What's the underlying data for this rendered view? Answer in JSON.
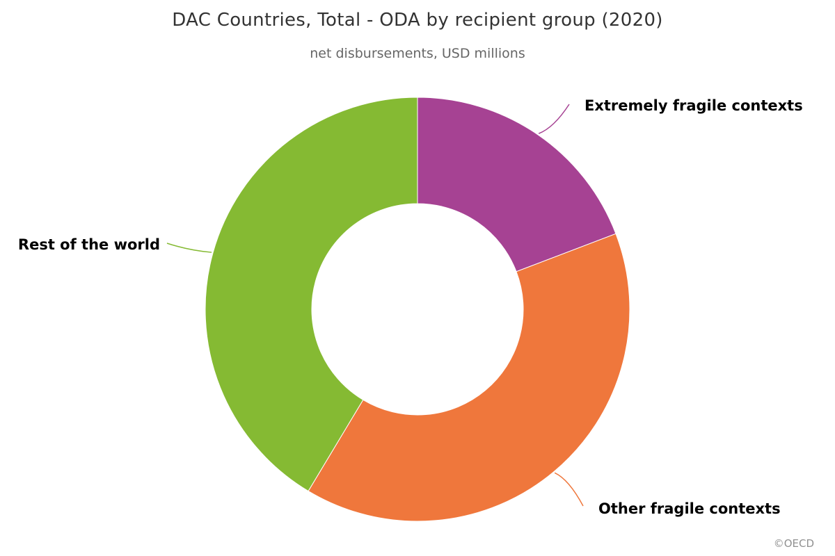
{
  "title": "DAC Countries, Total - ODA by recipient group (2020)",
  "subtitle": "net disbursements, USD millions",
  "credits": "©OECD",
  "chart_data": {
    "type": "pie",
    "variant": "donut",
    "title": "DAC Countries, Total - ODA by recipient group (2020)",
    "subtitle": "net disbursements, USD millions",
    "unit": "USD millions",
    "categories": [
      "Extremely fragile contexts",
      "Other fragile contexts",
      "Rest of the world"
    ],
    "values": [
      19.2,
      39.4,
      41.4
    ],
    "value_scale": "approximate share of total (%) estimated from slice angles",
    "colors": [
      "#a64293",
      "#ef773c",
      "#85ba33"
    ],
    "legend": "none",
    "labels": "outside with connector lines"
  }
}
